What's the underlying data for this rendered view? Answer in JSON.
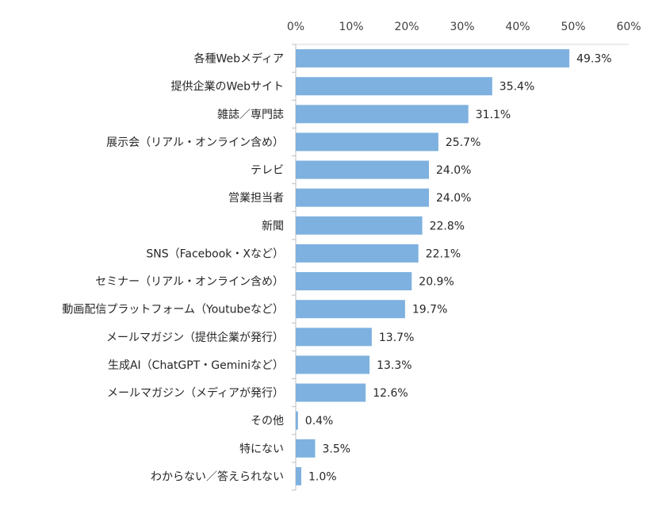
{
  "chart_data": {
    "type": "bar",
    "orientation": "horizontal",
    "title": "",
    "xlabel": "",
    "ylabel": "",
    "xlim": [
      0,
      60
    ],
    "x_ticks": [
      "0%",
      "10%",
      "20%",
      "30%",
      "40%",
      "50%",
      "60%"
    ],
    "x_tick_values": [
      0,
      10,
      20,
      30,
      40,
      50,
      60
    ],
    "x_axis_position": "top",
    "grid": false,
    "bar_color": "#7EB1DF",
    "categories": [
      "各種Webメディア",
      "提供企業のWebサイト",
      "雑誌／専門誌",
      "展示会（リアル・オンライン含め）",
      "テレビ",
      "営業担当者",
      "新聞",
      "SNS（Facebook・Xなど）",
      "セミナー（リアル・オンライン含め）",
      "動画配信プラットフォーム（Youtubeなど）",
      "メールマガジン（提供企業が発行）",
      "生成AI（ChatGPT・Geminiなど）",
      "メールマガジン（メディアが発行）",
      "その他",
      "特にない",
      "わからない／答えられない"
    ],
    "values": [
      49.3,
      35.4,
      31.1,
      25.7,
      24.0,
      24.0,
      22.8,
      22.1,
      20.9,
      19.7,
      13.7,
      13.3,
      12.6,
      0.4,
      3.5,
      1.0
    ],
    "value_labels": [
      "49.3%",
      "35.4%",
      "31.1%",
      "25.7%",
      "24.0%",
      "24.0%",
      "22.8%",
      "22.1%",
      "20.9%",
      "19.7%",
      "13.7%",
      "13.3%",
      "12.6%",
      "0.4%",
      "3.5%",
      "1.0%"
    ]
  }
}
